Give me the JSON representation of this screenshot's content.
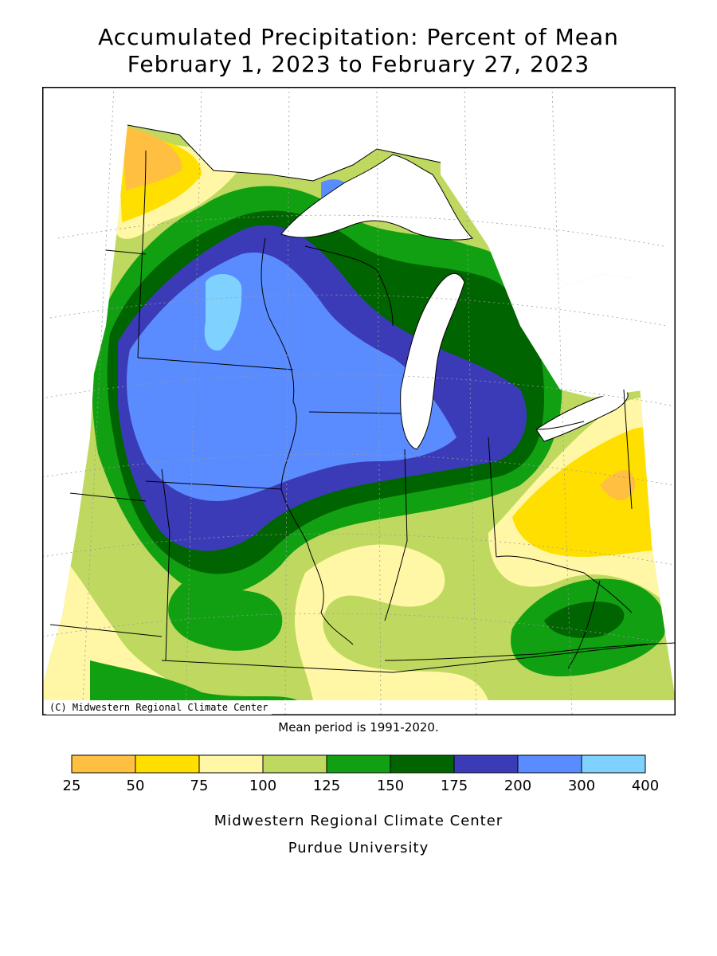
{
  "title": {
    "line1": "Accumulated Precipitation: Percent of Mean",
    "line2": "February 1, 2023 to February 27, 2023"
  },
  "map": {
    "copyright": "(C) Midwestern Regional Climate Center",
    "colors": {
      "p25_50": "#ffbf40",
      "p50_75": "#ffdf00",
      "p75_100": "#fff7a5",
      "p100_125": "#bfd960",
      "p125_150": "#11a011",
      "p150_175": "#006400",
      "p175_200": "#3b3bb8",
      "p200_300": "#5a8cff",
      "p300_400": "#7fd2ff",
      "water": "#ffffff"
    }
  },
  "mean_period": "Mean period is 1991-2020.",
  "legend": {
    "colors": [
      "#ffbf40",
      "#ffdf00",
      "#fff7a5",
      "#bfd960",
      "#11a011",
      "#006400",
      "#3b3bb8",
      "#5a8cff",
      "#7fd2ff"
    ],
    "ticks": [
      "25",
      "50",
      "75",
      "100",
      "125",
      "150",
      "175",
      "200",
      "300",
      "400"
    ]
  },
  "footer": {
    "line1": "Midwestern Regional Climate Center",
    "line2": "Purdue University"
  }
}
